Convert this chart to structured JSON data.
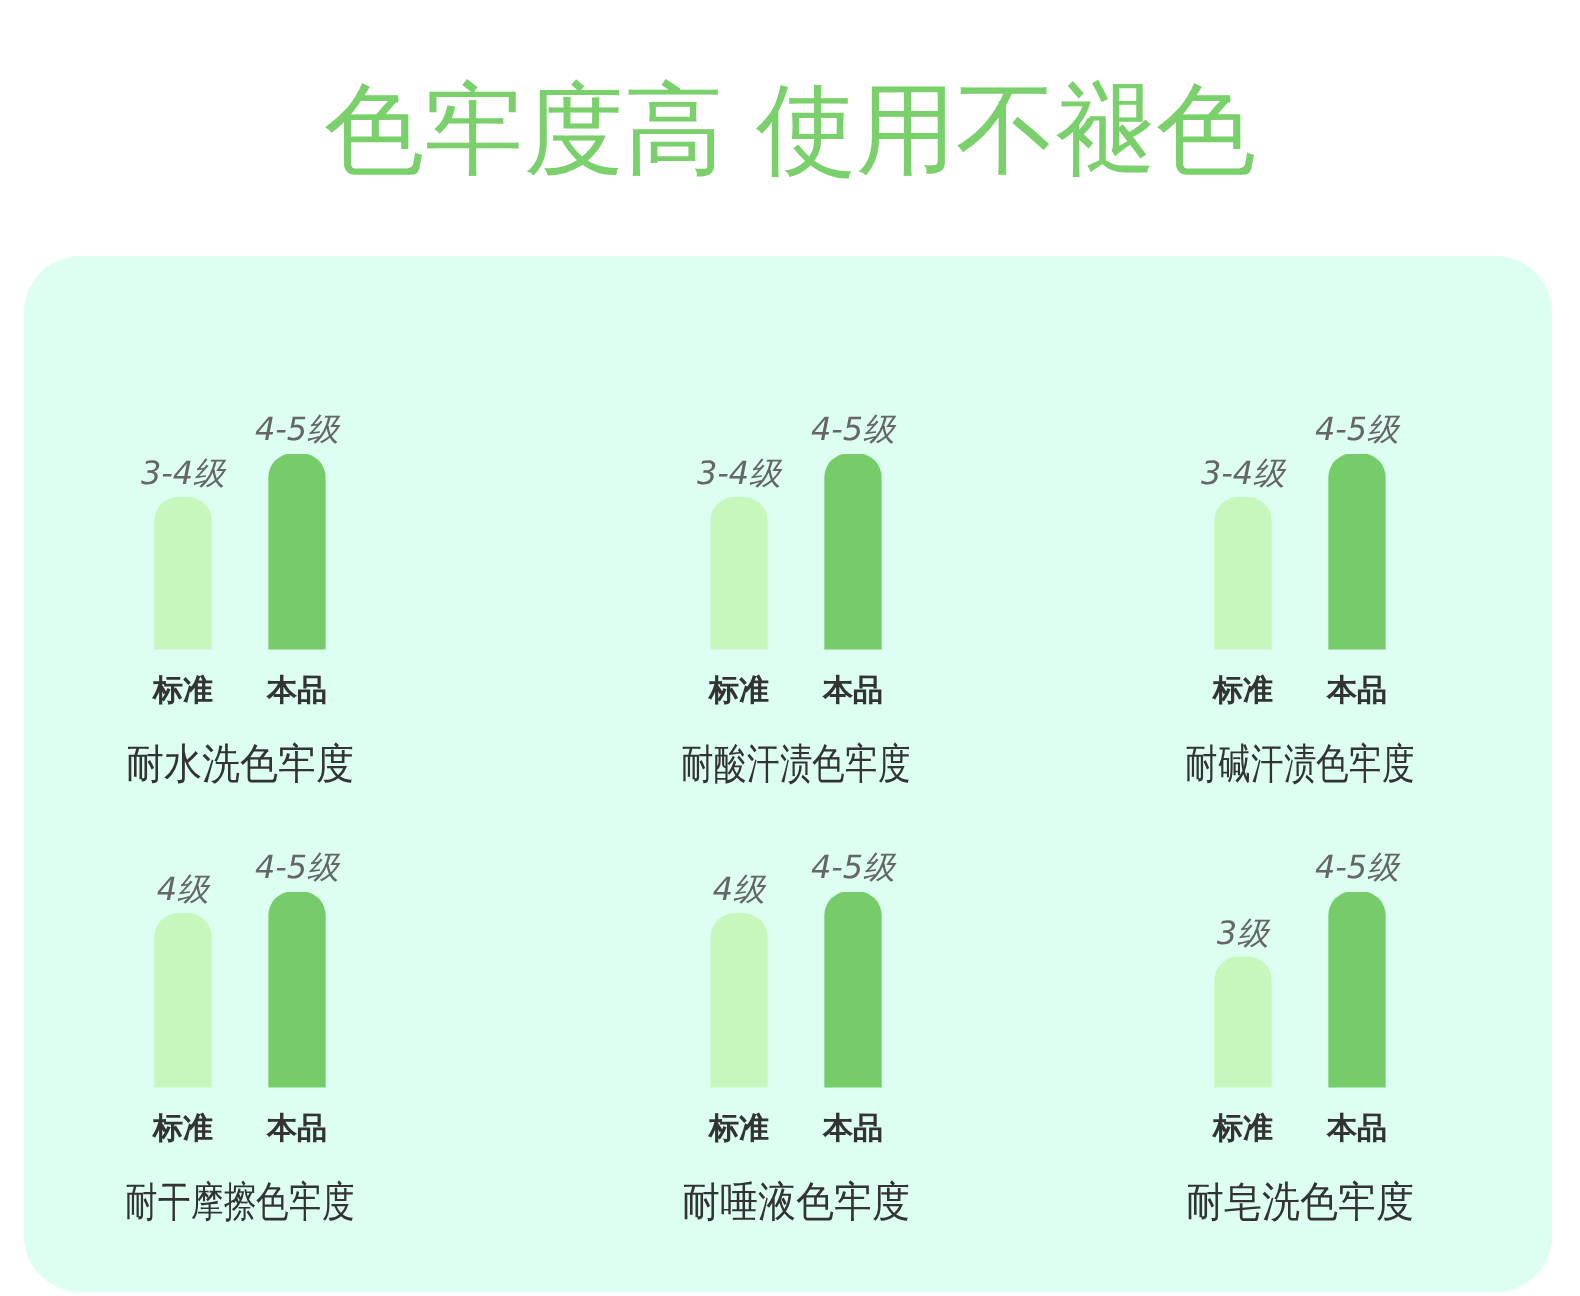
{
  "chart_data": [
    {
      "type": "other",
      "title": "色牢度高 使用不褪色"
    },
    {
      "type": "bar",
      "xlabel": "耐水洗色牢度",
      "categories": [
        "标准",
        "本品"
      ],
      "values": [
        3.5,
        4.5
      ],
      "colors": [
        "#c8f7bd",
        "#77cc6a"
      ],
      "value_labels": [
        "3-4级",
        "4-5级"
      ]
    },
    {
      "type": "bar",
      "xlabel": "耐酸汗渍色牢度",
      "categories": [
        "标准",
        "本品"
      ],
      "values": [
        3.5,
        4.5
      ],
      "colors": [
        "#c8f7bd",
        "#77cc6a"
      ],
      "value_labels": [
        "3-4级",
        "4-5级"
      ]
    },
    {
      "type": "bar",
      "xlabel": "耐碱汗渍色牢度",
      "categories": [
        "标准",
        "本品"
      ],
      "values": [
        3.5,
        4.5
      ],
      "colors": [
        "#c8f7bd",
        "#77cc6a"
      ],
      "value_labels": [
        "3-4级",
        "4-5级"
      ]
    },
    {
      "type": "bar",
      "xlabel": "耐干摩擦色牢度",
      "categories": [
        "标准",
        "本品"
      ],
      "values": [
        4,
        4.5
      ],
      "colors": [
        "#c8f7bd",
        "#77cc6a"
      ],
      "value_labels": [
        "4级",
        "4-5级"
      ]
    },
    {
      "type": "bar",
      "xlabel": "耐唾液色牢度",
      "categories": [
        "标准",
        "本品"
      ],
      "values": [
        4,
        4.5
      ],
      "colors": [
        "#c8f7bd",
        "#77cc6a"
      ],
      "value_labels": [
        "4级",
        "4-5级"
      ]
    },
    {
      "type": "bar",
      "xlabel": "耐皂洗色牢度",
      "categories": [
        "标准",
        "本品"
      ],
      "values": [
        3,
        4.5
      ],
      "colors": [
        "#c8f7bd",
        "#77cc6a"
      ],
      "value_labels": [
        "3级",
        "4-5级"
      ]
    }
  ]
}
